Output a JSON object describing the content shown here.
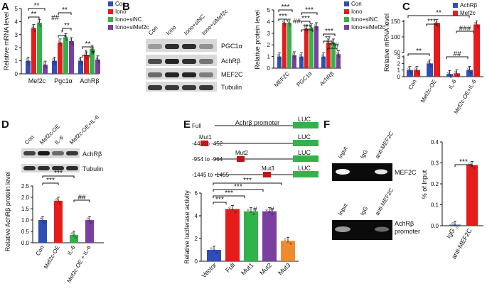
{
  "colors": {
    "blue": "#2f4fb5",
    "red": "#e51c1c",
    "green": "#33b24a",
    "purple": "#7b3fa0",
    "orange": "#f08a30"
  },
  "panels": {
    "A": {
      "letter": "A",
      "ylabel": "Relative mRNA level",
      "legend": [
        "Con",
        "Iono",
        "Iono+siNC",
        "Iono+siMef2c"
      ]
    },
    "B": {
      "letter": "B",
      "ylabel": "Relative protein level",
      "legend": [
        "Con",
        "Iono",
        "Iono+siNC",
        "Iono+siMef2c"
      ],
      "blot_cols": [
        "Con",
        "Iono",
        "Iono+siNC",
        "Iono+siMef2c"
      ],
      "blot_rows": [
        "PGC1α",
        "AchRβ",
        "MEF2C",
        "Tubulin"
      ]
    },
    "C": {
      "letter": "C",
      "ylabel": "Relative mRNA level",
      "legend": [
        "AchRβ",
        "Mef2c"
      ]
    },
    "D": {
      "letter": "D",
      "ylabel": "Relative AchRβ protein level",
      "blot_cols": [
        "Con",
        "Mef2c-OE",
        "IL-6",
        "Mef2c-OE+IL-6"
      ],
      "blot_rows": [
        "AchRβ",
        "Tubulin"
      ]
    },
    "E": {
      "letter": "E",
      "ylabel": "Relative luciferase activity",
      "constructs": [
        {
          "name": "Full",
          "mut": ""
        },
        {
          "name": "-442 to -452",
          "mut": "Mut1"
        },
        {
          "name": "-954 to -964",
          "mut": "Mut2"
        },
        {
          "name": "-1445 to -1455",
          "mut": "Mut3"
        }
      ],
      "promoter_label": "Achrβ promoter",
      "luc": "LUC"
    },
    "F": {
      "letter": "F",
      "ylabel": "% of Input",
      "gel_cols": [
        "Input",
        "IgG",
        "anti-MEF2C"
      ],
      "gel1_label": "MEF2C",
      "gel2_label": "AchRβ\npromoter"
    }
  },
  "chart_data": [
    {
      "panel": "A",
      "type": "bar",
      "categories": [
        "Mef2c",
        "Pgc1α",
        "AchRβ"
      ],
      "ylim": [
        0,
        5
      ],
      "yticks": [
        0,
        1,
        2,
        3,
        4,
        5
      ],
      "series": [
        {
          "name": "Con",
          "values": [
            1.0,
            1.0,
            1.0
          ]
        },
        {
          "name": "Iono",
          "values": [
            3.5,
            2.4,
            1.4
          ]
        },
        {
          "name": "Iono+siNC",
          "values": [
            3.9,
            2.8,
            1.9
          ]
        },
        {
          "name": "Iono+siMef2c",
          "values": [
            0.7,
            2.5,
            1.1
          ]
        }
      ],
      "significance": [
        "**",
        "**",
        "##",
        "**",
        "**",
        "*",
        "**",
        "*",
        "#",
        "#"
      ]
    },
    {
      "panel": "B",
      "type": "bar",
      "categories": [
        "MEF2C",
        "PGC1α",
        "AchRβ"
      ],
      "ylim": [
        0,
        5
      ],
      "yticks": [
        0,
        1,
        2,
        3,
        4,
        5
      ],
      "series": [
        {
          "name": "Con",
          "values": [
            1.0,
            1.0,
            1.0
          ]
        },
        {
          "name": "Iono",
          "values": [
            3.9,
            3.4,
            2.2
          ]
        },
        {
          "name": "Iono+siNC",
          "values": [
            3.9,
            3.5,
            2.2
          ]
        },
        {
          "name": "Iono+siMef2c",
          "values": [
            1.1,
            3.6,
            1.2
          ]
        }
      ],
      "significance": [
        "***",
        "***",
        "##",
        "***",
        "***",
        "***",
        "***",
        "**",
        "**",
        "#"
      ]
    },
    {
      "panel": "C",
      "type": "bar",
      "categories": [
        "Con",
        "Mef2c-OE",
        "IL-6",
        "Mef2c-OE+IL-6"
      ],
      "yticks": [
        0,
        1,
        2,
        3,
        50,
        100,
        150
      ],
      "series": [
        {
          "name": "AchRβ",
          "values": [
            1.0,
            2.0,
            0.4,
            1.0
          ]
        },
        {
          "name": "Mef2c",
          "values": [
            1.0,
            145,
            0.5,
            140
          ]
        }
      ],
      "significance": [
        "**",
        "***",
        "**",
        "##",
        "###"
      ]
    },
    {
      "panel": "D",
      "type": "bar",
      "categories": [
        "Con",
        "Mef2c-OE",
        "IL-6",
        "Mef2c-OE + IL-6"
      ],
      "ylim": [
        0,
        2.5
      ],
      "yticks": [
        0.0,
        0.5,
        1.0,
        1.5,
        2.0,
        2.5
      ],
      "values": [
        1.0,
        1.85,
        0.35,
        1.0
      ],
      "significance": [
        "***",
        "***",
        "##"
      ]
    },
    {
      "panel": "E",
      "type": "bar",
      "categories": [
        "Vector",
        "Full",
        "Mut1",
        "Mut2",
        "Mut3"
      ],
      "ylim": [
        0,
        6
      ],
      "yticks": [
        0,
        2,
        4,
        6
      ],
      "values": [
        1.0,
        4.6,
        4.4,
        4.4,
        1.8
      ],
      "significance": [
        "***",
        "***",
        "***",
        "***",
        "#",
        "#"
      ]
    },
    {
      "panel": "F",
      "type": "bar",
      "categories": [
        "IgG",
        "anti-MEF2C"
      ],
      "ylim": [
        0,
        0.4
      ],
      "yticks": [
        0.0,
        0.1,
        0.2,
        0.3,
        0.4
      ],
      "values": [
        0.005,
        0.29
      ],
      "significance": [
        "***"
      ]
    }
  ]
}
